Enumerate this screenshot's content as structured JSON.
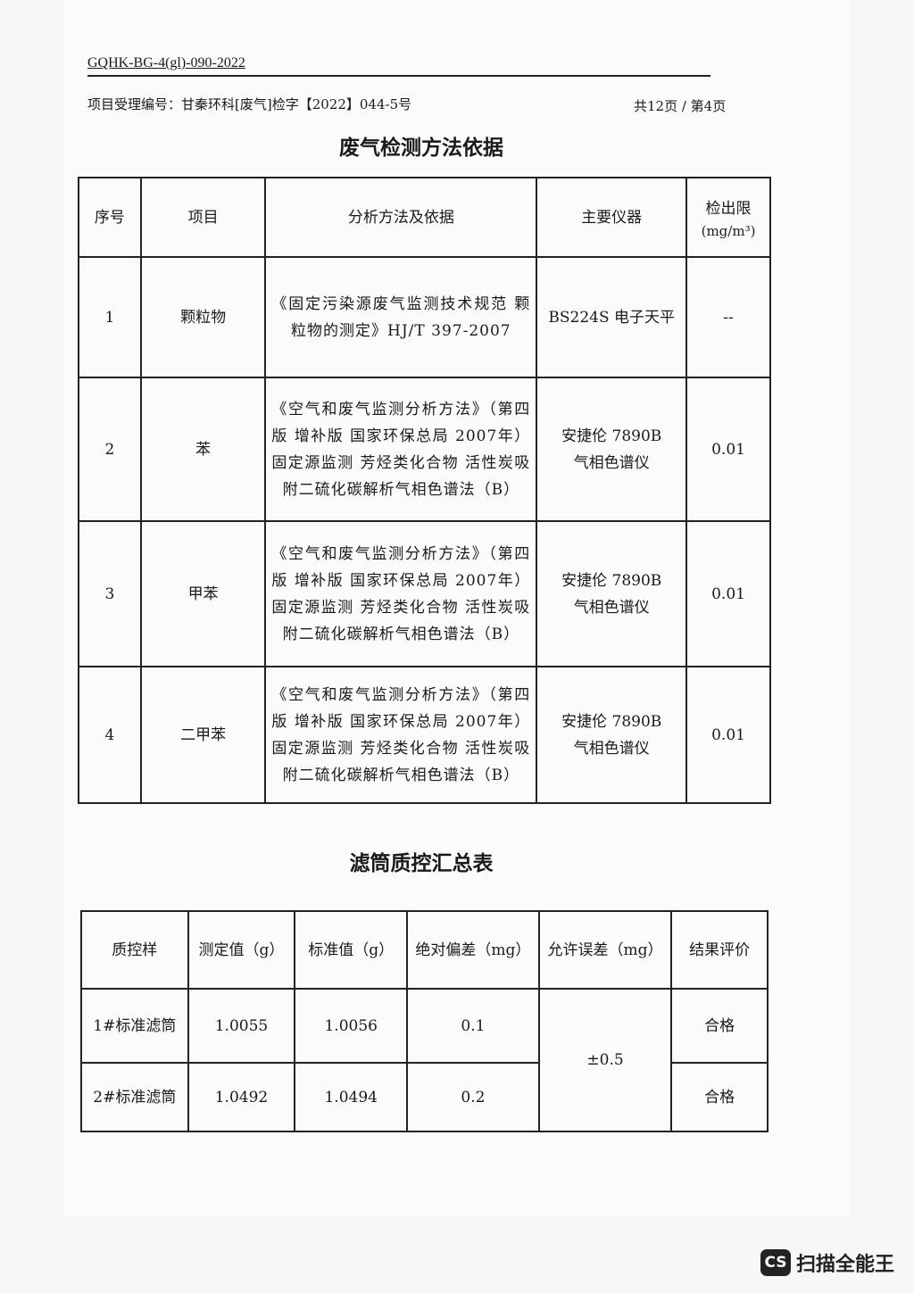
{
  "header": {
    "doc_no": "GQHK-BG-4(gl)-090-2022",
    "receipt_no": "项目受理编号：甘秦环科[废气]检字【2022】044-5号",
    "page_info": "共12页 / 第4页"
  },
  "table1": {
    "title": "废气检测方法依据",
    "headers": [
      "序号",
      "项目",
      "分析方法及依据",
      "主要仪器",
      "检出限",
      "(mg/m³)"
    ],
    "rows": [
      {
        "no": "1",
        "item": "颗粒物",
        "method": "《固定污染源废气监测技术规范 颗粒物的测定》HJ/T 397-2007",
        "instrument": "BS224S 电子天平",
        "limit": "--"
      },
      {
        "no": "2",
        "item": "苯",
        "method": "《空气和废气监测分析方法》（第四版 增补版 国家环保总局 2007年）固定源监测 芳烃类化合物 活性炭吸附二硫化碳解析气相色谱法（B）",
        "instrument": "安捷伦 7890B 气相色谱仪",
        "limit": "0.01"
      },
      {
        "no": "3",
        "item": "甲苯",
        "method": "《空气和废气监测分析方法》（第四版 增补版 国家环保总局 2007年）固定源监测 芳烃类化合物 活性炭吸附二硫化碳解析气相色谱法（B）",
        "instrument": "安捷伦 7890B 气相色谱仪",
        "limit": "0.01"
      },
      {
        "no": "4",
        "item": "二甲苯",
        "method": "《空气和废气监测分析方法》（第四版 增补版 国家环保总局 2007年）固定源监测 芳烃类化合物 活性炭吸附二硫化碳解析气相色谱法（B）",
        "instrument": "安捷伦 7890B 气相色谱仪",
        "limit": "0.01"
      }
    ]
  },
  "table2": {
    "title": "滤筒质控汇总表",
    "headers": [
      "质控样",
      "测定值（g）",
      "标准值（g）",
      "绝对偏差（mg）",
      "允许误差（mg）",
      "结果评价"
    ],
    "allowed": "±0.5",
    "rows": [
      {
        "sample": "1#标准滤筒",
        "measured": "1.0055",
        "standard": "1.0056",
        "deviation": "0.1",
        "result": "合格"
      },
      {
        "sample": "2#标准滤筒",
        "measured": "1.0492",
        "standard": "1.0494",
        "deviation": "0.2",
        "result": "合格"
      }
    ]
  },
  "watermark": {
    "badge": "CS",
    "text": "扫描全能王"
  }
}
